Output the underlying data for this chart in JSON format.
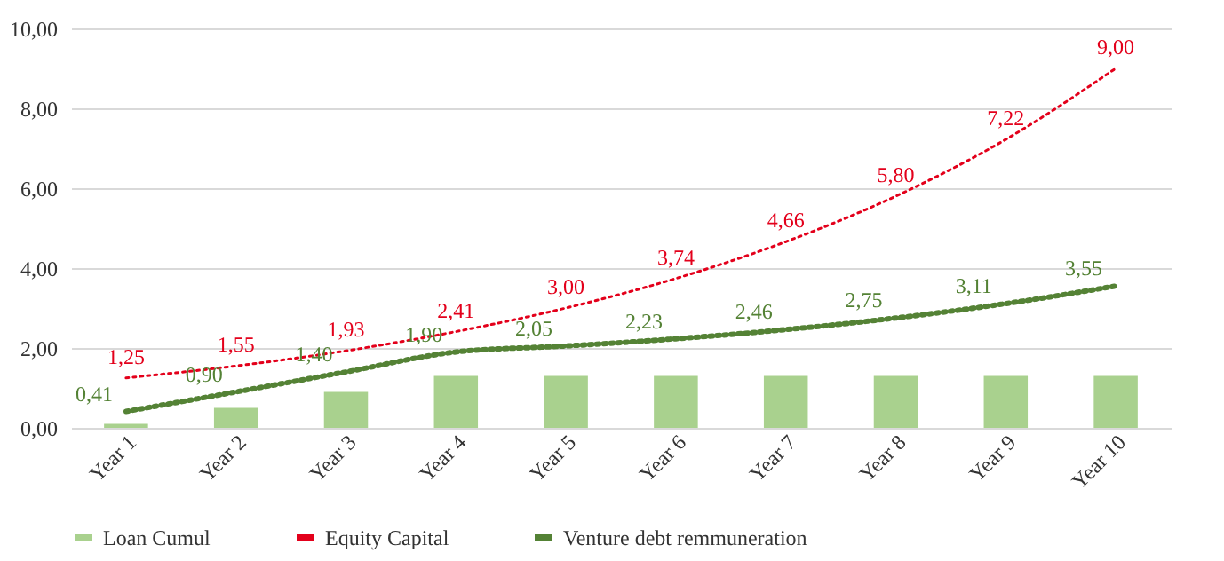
{
  "chart_data": {
    "type": "bar",
    "categories": [
      "Year 1",
      "Year 2",
      "Year 3",
      "Year 4",
      "Year 5",
      "Year 6",
      "Year 7",
      "Year 8",
      "Year 9",
      "Year 10"
    ],
    "series": [
      {
        "name": "Loan Cumul",
        "type": "bar",
        "color": "#a9d18e",
        "values": [
          0.1,
          0.5,
          0.9,
          1.3,
          1.3,
          1.3,
          1.3,
          1.3,
          1.3,
          1.3
        ]
      },
      {
        "name": "Equity Capital",
        "type": "line",
        "line_style": "dotted",
        "color": "#e3001b",
        "values": [
          1.25,
          1.55,
          1.93,
          2.41,
          3.0,
          3.74,
          4.66,
          5.8,
          7.22,
          9.0
        ],
        "value_labels": [
          "1,25",
          "1,55",
          "1,93",
          "2,41",
          "3,00",
          "3,74",
          "4,66",
          "5,80",
          "7,22",
          "9,00"
        ]
      },
      {
        "name": "Venture debt remmuneration",
        "type": "line",
        "line_style": "dotted",
        "color": "#548235",
        "values": [
          0.41,
          0.9,
          1.4,
          1.9,
          2.05,
          2.23,
          2.46,
          2.75,
          3.11,
          3.55
        ],
        "value_labels": [
          "0,41",
          "0,90",
          "1,40",
          "1,90",
          "2,05",
          "2,23",
          "2,46",
          "2,75",
          "3,11",
          "3,55"
        ]
      }
    ],
    "ylim": [
      0,
      10
    ],
    "yticks": [
      {
        "value": 0,
        "label": "0,00"
      },
      {
        "value": 2,
        "label": "2,00"
      },
      {
        "value": 4,
        "label": "4,00"
      },
      {
        "value": 6,
        "label": "6,00"
      },
      {
        "value": 8,
        "label": "8,00"
      },
      {
        "value": 10,
        "label": "10,00"
      }
    ],
    "grid": "y",
    "legend": "bottom"
  }
}
